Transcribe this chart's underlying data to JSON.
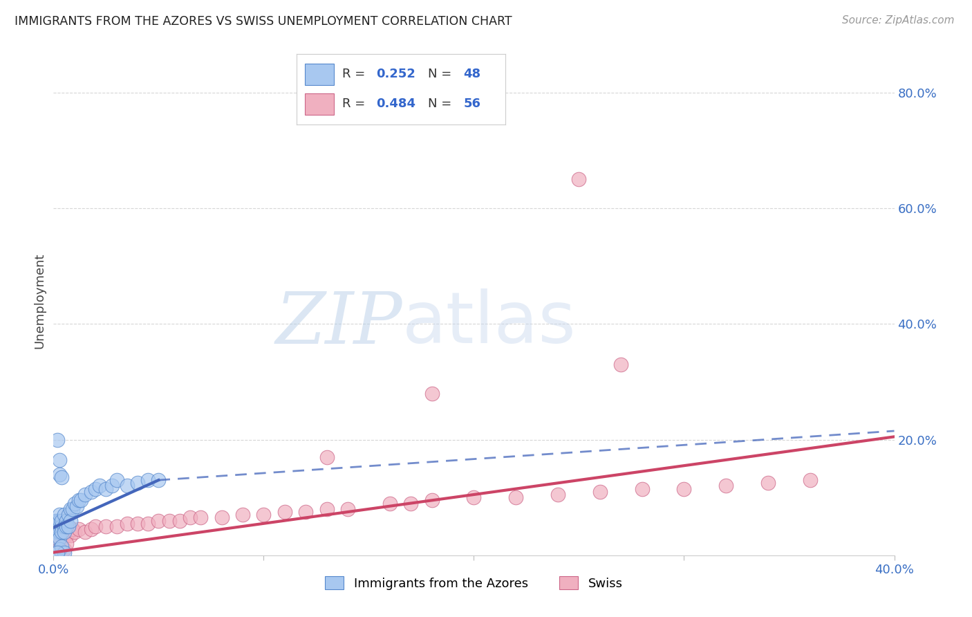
{
  "title": "IMMIGRANTS FROM THE AZORES VS SWISS UNEMPLOYMENT CORRELATION CHART",
  "source": "Source: ZipAtlas.com",
  "ylabel": "Unemployment",
  "watermark_zip": "ZIP",
  "watermark_atlas": "atlas",
  "xlim": [
    0.0,
    0.4
  ],
  "ylim": [
    0.0,
    0.88
  ],
  "xtick_vals": [
    0.0,
    0.1,
    0.2,
    0.3,
    0.4
  ],
  "xtick_labels": [
    "0.0%",
    "",
    "",
    "",
    "40.0%"
  ],
  "ytick_right_vals": [
    0.2,
    0.4,
    0.6,
    0.8
  ],
  "ytick_right_labels": [
    "20.0%",
    "40.0%",
    "60.0%",
    "80.0%"
  ],
  "blue_fill": "#a8c8f0",
  "blue_edge": "#5588cc",
  "pink_fill": "#f0b0c0",
  "pink_edge": "#cc6688",
  "blue_line": "#4466bb",
  "pink_line": "#cc4466",
  "legend_label_blue": "Immigrants from the Azores",
  "legend_label_pink": "Swiss",
  "background_color": "#ffffff",
  "grid_color": "#cccccc",
  "blue_scatter_x": [
    0.001,
    0.001,
    0.001,
    0.002,
    0.002,
    0.002,
    0.002,
    0.003,
    0.003,
    0.003,
    0.003,
    0.003,
    0.004,
    0.004,
    0.004,
    0.005,
    0.005,
    0.005,
    0.006,
    0.006,
    0.007,
    0.007,
    0.008,
    0.008,
    0.009,
    0.01,
    0.011,
    0.012,
    0.013,
    0.015,
    0.018,
    0.02,
    0.022,
    0.025,
    0.028,
    0.03,
    0.035,
    0.04,
    0.045,
    0.05,
    0.002,
    0.003,
    0.003,
    0.004,
    0.003,
    0.004,
    0.005,
    0.002
  ],
  "blue_scatter_y": [
    0.05,
    0.04,
    0.06,
    0.05,
    0.04,
    0.06,
    0.03,
    0.05,
    0.04,
    0.06,
    0.03,
    0.07,
    0.05,
    0.04,
    0.06,
    0.05,
    0.07,
    0.04,
    0.06,
    0.05,
    0.07,
    0.05,
    0.08,
    0.06,
    0.08,
    0.09,
    0.085,
    0.095,
    0.095,
    0.105,
    0.11,
    0.115,
    0.12,
    0.115,
    0.12,
    0.13,
    0.12,
    0.125,
    0.13,
    0.13,
    0.2,
    0.165,
    0.01,
    0.015,
    0.14,
    0.135,
    0.005,
    0.005
  ],
  "pink_scatter_x": [
    0.001,
    0.001,
    0.002,
    0.002,
    0.003,
    0.003,
    0.004,
    0.004,
    0.005,
    0.005,
    0.006,
    0.007,
    0.008,
    0.009,
    0.01,
    0.012,
    0.015,
    0.018,
    0.02,
    0.025,
    0.03,
    0.035,
    0.04,
    0.045,
    0.05,
    0.055,
    0.06,
    0.065,
    0.07,
    0.08,
    0.09,
    0.1,
    0.11,
    0.12,
    0.13,
    0.14,
    0.16,
    0.17,
    0.18,
    0.2,
    0.22,
    0.24,
    0.26,
    0.28,
    0.3,
    0.32,
    0.34,
    0.36,
    0.003,
    0.004,
    0.005,
    0.006,
    0.25,
    0.27,
    0.18,
    0.13
  ],
  "pink_scatter_y": [
    0.03,
    0.04,
    0.03,
    0.045,
    0.03,
    0.04,
    0.03,
    0.045,
    0.035,
    0.04,
    0.035,
    0.04,
    0.035,
    0.045,
    0.04,
    0.045,
    0.04,
    0.045,
    0.05,
    0.05,
    0.05,
    0.055,
    0.055,
    0.055,
    0.06,
    0.06,
    0.06,
    0.065,
    0.065,
    0.065,
    0.07,
    0.07,
    0.075,
    0.075,
    0.08,
    0.08,
    0.09,
    0.09,
    0.095,
    0.1,
    0.1,
    0.105,
    0.11,
    0.115,
    0.115,
    0.12,
    0.125,
    0.13,
    0.02,
    0.015,
    0.01,
    0.02,
    0.65,
    0.33,
    0.28,
    0.17
  ],
  "blue_trend_x0": 0.0,
  "blue_trend_y0": 0.048,
  "blue_trend_x1_solid": 0.05,
  "blue_trend_y1_solid": 0.13,
  "blue_trend_x1_dash": 0.4,
  "blue_trend_y1_dash": 0.215,
  "pink_trend_x0": 0.0,
  "pink_trend_y0": 0.005,
  "pink_trend_x1": 0.4,
  "pink_trend_y1": 0.205
}
